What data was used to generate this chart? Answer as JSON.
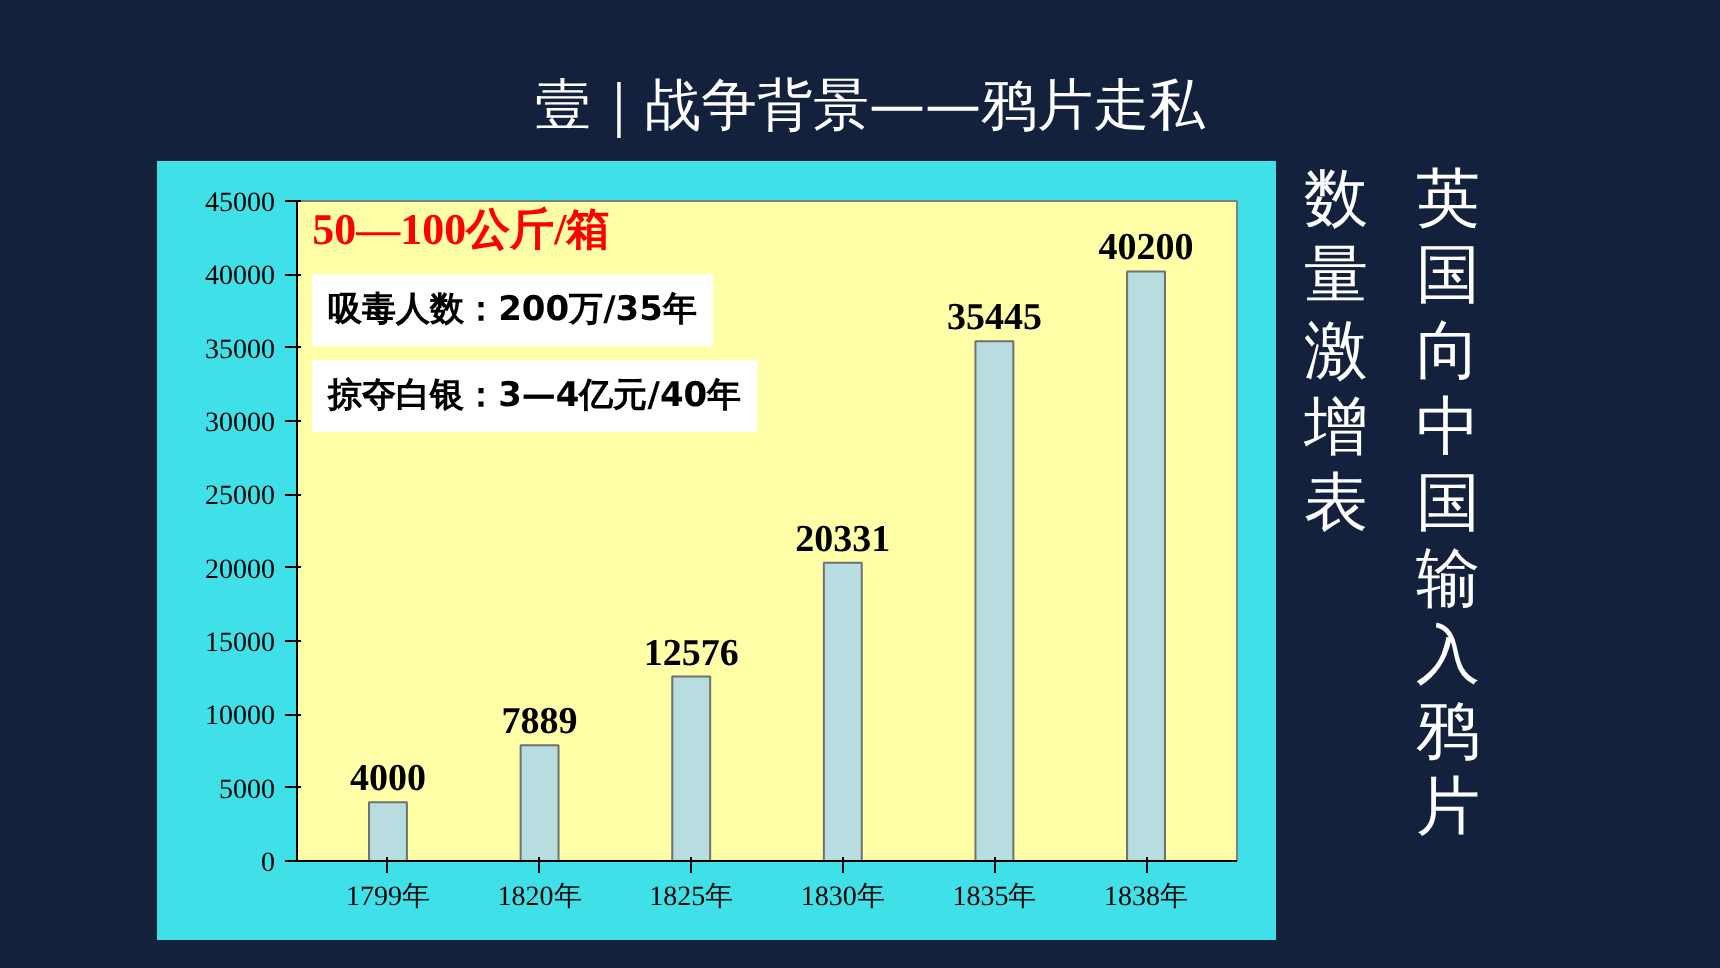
{
  "chart_data": {
    "type": "bar",
    "title": "壹｜战争背景——鸦片走私",
    "subtitle": "英国向中国输入鸦片数量激增表",
    "categories": [
      "1799年",
      "1820年",
      "1825年",
      "1830年",
      "1835年",
      "1838年"
    ],
    "values": [
      4000,
      7889,
      12576,
      20331,
      35445,
      40200
    ],
    "color": "#b7dde0",
    "ylim": [
      0,
      45000
    ],
    "yticks": [
      0,
      5000,
      10000,
      15000,
      20000,
      25000,
      30000,
      35000,
      40000,
      45000
    ],
    "grid": false,
    "data_labels": true,
    "annotations": [
      "50—100公斤/箱",
      "吸毒人数：200万/35年",
      "掠夺白银：3—4亿元/40年"
    ]
  }
}
